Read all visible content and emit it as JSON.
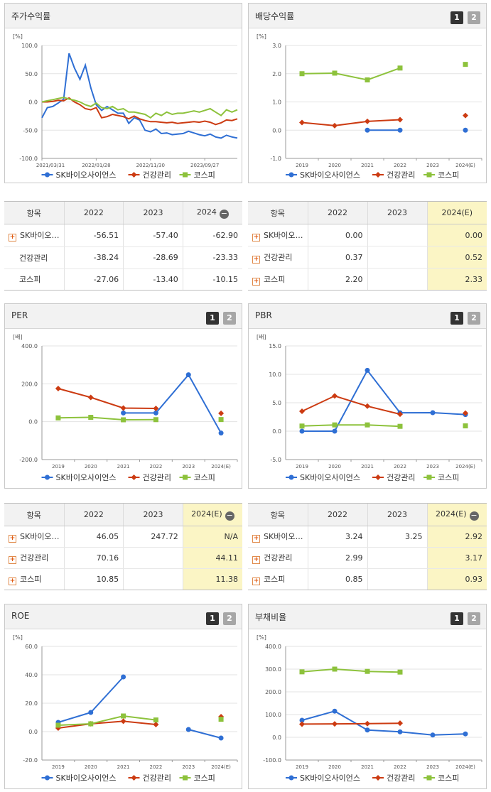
{
  "stock_return": {
    "title": "주가수익률",
    "table": {
      "head": [
        "항목",
        "2022",
        "2023",
        "2024"
      ],
      "rows": [
        {
          "name": "SK바이오…",
          "v": [
            "-56.51",
            "-57.40",
            "-62.90"
          ],
          "plus": true
        },
        {
          "name": "건강관리",
          "v": [
            "-38.24",
            "-28.69",
            "-23.33"
          ],
          "plus": false
        },
        {
          "name": "코스피",
          "v": [
            "-27.06",
            "-13.40",
            "-10.15"
          ],
          "plus": false
        }
      ]
    }
  },
  "dividend_yield": {
    "title": "배당수익률",
    "btn1": "1",
    "btn2": "2",
    "table": {
      "head": [
        "항목",
        "2022",
        "2023",
        "2024(E)"
      ],
      "rows": [
        {
          "name": "SK바이오…",
          "v": [
            "0.00",
            "",
            "0.00"
          ],
          "plus": true
        },
        {
          "name": "건강관리",
          "v": [
            "0.37",
            "",
            "0.52"
          ],
          "plus": true
        },
        {
          "name": "코스피",
          "v": [
            "2.20",
            "",
            "2.33"
          ],
          "plus": true
        }
      ]
    }
  },
  "per": {
    "title": "PER",
    "btn1": "1",
    "btn2": "2",
    "table": {
      "head": [
        "항목",
        "2022",
        "2023",
        "2024(E)"
      ],
      "rows": [
        {
          "name": "SK바이오…",
          "v": [
            "46.05",
            "247.72",
            "N/A"
          ],
          "plus": true
        },
        {
          "name": "건강관리",
          "v": [
            "70.16",
            "",
            "44.11"
          ],
          "plus": true
        },
        {
          "name": "코스피",
          "v": [
            "10.85",
            "",
            "11.38"
          ],
          "plus": true
        }
      ]
    }
  },
  "pbr": {
    "title": "PBR",
    "btn1": "1",
    "btn2": "2",
    "table": {
      "head": [
        "항목",
        "2022",
        "2023",
        "2024(E)"
      ],
      "rows": [
        {
          "name": "SK바이오…",
          "v": [
            "3.24",
            "3.25",
            "2.92"
          ],
          "plus": true
        },
        {
          "name": "건강관리",
          "v": [
            "2.99",
            "",
            "3.17"
          ],
          "plus": true
        },
        {
          "name": "코스피",
          "v": [
            "0.85",
            "",
            "0.93"
          ],
          "plus": true
        }
      ]
    }
  },
  "roe": {
    "title": "ROE",
    "btn1": "1",
    "btn2": "2"
  },
  "debt_ratio": {
    "title": "부채비율",
    "btn1": "1",
    "btn2": "2"
  },
  "colors": {
    "sk": "#2f6fd4",
    "health": "#cc3b12",
    "kospi": "#8dc23c"
  },
  "chart_data": [
    {
      "id": "stock_return",
      "type": "line",
      "unit": "[%]",
      "ylim": [
        -100,
        100
      ],
      "yticks": [
        "100.0",
        "50.0",
        "0.0",
        "-50.0",
        "-100.0"
      ],
      "x_tick_labels": [
        "2021/03/31",
        "2022/01/28",
        "2022/11/30",
        "2023/09/27"
      ],
      "x_ticks_at": [
        0,
        10,
        20,
        30
      ],
      "x_max": 36,
      "series": [
        {
          "name": "SK바이오사이언스",
          "color": "#2f6fd4",
          "marker": "circle",
          "values": [
            -28,
            -10,
            -8,
            -2,
            5,
            86,
            60,
            40,
            65,
            25,
            -5,
            -15,
            -8,
            -14,
            -20,
            -20,
            -38,
            -28,
            -32,
            -50,
            -53,
            -48,
            -56,
            -55,
            -58,
            -57,
            -56,
            -52,
            -55,
            -58,
            -60,
            -57,
            -62,
            -64,
            -59,
            -62,
            -64
          ]
        },
        {
          "name": "건강관리",
          "color": "#cc3b12",
          "marker": "diamond",
          "values": [
            0,
            0,
            1,
            3,
            2,
            7,
            0,
            -5,
            -12,
            -14,
            -10,
            -28,
            -26,
            -22,
            -24,
            -26,
            -30,
            -25,
            -30,
            -33,
            -35,
            -35,
            -36,
            -37,
            -36,
            -38,
            -37,
            -36,
            -35,
            -36,
            -34,
            -36,
            -40,
            -37,
            -32,
            -33,
            -30
          ]
        },
        {
          "name": "코스피",
          "color": "#8dc23c",
          "marker": "square",
          "values": [
            0,
            2,
            4,
            6,
            8,
            5,
            3,
            0,
            -5,
            -8,
            -2,
            -10,
            -12,
            -8,
            -14,
            -12,
            -18,
            -18,
            -20,
            -22,
            -28,
            -20,
            -24,
            -18,
            -22,
            -20,
            -20,
            -18,
            -16,
            -18,
            -15,
            -12,
            -18,
            -24,
            -14,
            -18,
            -14
          ]
        }
      ]
    },
    {
      "id": "dividend_yield",
      "type": "line",
      "unit": "[%]",
      "ylim": [
        -1,
        3
      ],
      "yticks": [
        "3.0",
        "2.0",
        "1.0",
        "0.0",
        "-1.0"
      ],
      "categories": [
        "2019",
        "2020",
        "2021",
        "2022",
        "2023",
        "2024(E)"
      ],
      "series": [
        {
          "name": "SK바이오사이언스",
          "color": "#2f6fd4",
          "marker": "circle",
          "values": [
            null,
            null,
            0.0,
            0.0,
            null,
            0.0
          ]
        },
        {
          "name": "건강관리",
          "color": "#cc3b12",
          "marker": "diamond",
          "values": [
            0.27,
            0.16,
            0.31,
            0.37,
            null,
            0.52
          ]
        },
        {
          "name": "코스피",
          "color": "#8dc23c",
          "marker": "square",
          "values": [
            2.0,
            2.02,
            1.78,
            2.2,
            null,
            2.33
          ]
        }
      ]
    },
    {
      "id": "per",
      "type": "line",
      "unit": "[배]",
      "ylim": [
        -200,
        400
      ],
      "yticks": [
        "400.0",
        "200.0",
        "0.0",
        "-200.0"
      ],
      "categories": [
        "2019",
        "2020",
        "2021",
        "2022",
        "2023",
        "2024(E)"
      ],
      "series": [
        {
          "name": "SK바이오사이언스",
          "color": "#2f6fd4",
          "marker": "circle",
          "values": [
            null,
            null,
            46.0,
            46.05,
            247.72,
            -60
          ]
        },
        {
          "name": "건강관리",
          "color": "#cc3b12",
          "marker": "diamond",
          "values": [
            175,
            128,
            72,
            70.16,
            null,
            44.11
          ]
        },
        {
          "name": "코스피",
          "color": "#8dc23c",
          "marker": "square",
          "values": [
            20,
            23,
            10,
            10.85,
            null,
            11.38
          ]
        }
      ]
    },
    {
      "id": "pbr",
      "type": "line",
      "unit": "[배]",
      "ylim": [
        -5,
        15
      ],
      "yticks": [
        "15.0",
        "10.0",
        "5.0",
        "0.0",
        "-5.0"
      ],
      "categories": [
        "2019",
        "2020",
        "2021",
        "2022",
        "2023",
        "2024(E)"
      ],
      "series": [
        {
          "name": "SK바이오사이언스",
          "color": "#2f6fd4",
          "marker": "circle",
          "values": [
            0.0,
            0.0,
            10.7,
            3.24,
            3.25,
            2.92
          ]
        },
        {
          "name": "건강관리",
          "color": "#cc3b12",
          "marker": "diamond",
          "values": [
            3.5,
            6.2,
            4.4,
            2.99,
            null,
            3.17
          ]
        },
        {
          "name": "코스피",
          "color": "#8dc23c",
          "marker": "square",
          "values": [
            0.9,
            1.1,
            1.1,
            0.85,
            null,
            0.93
          ]
        }
      ]
    },
    {
      "id": "roe",
      "type": "line",
      "unit": "[%]",
      "ylim": [
        -20,
        60
      ],
      "yticks": [
        "60.0",
        "40.0",
        "20.0",
        "0.0",
        "-20.0"
      ],
      "categories": [
        "2019",
        "2020",
        "2021",
        "2022",
        "2023",
        "2024(E)"
      ],
      "series": [
        {
          "name": "SK바이오사이언스",
          "color": "#2f6fd4",
          "marker": "circle",
          "values": [
            6.5,
            13.5,
            38.5,
            null,
            1.5,
            -4.5
          ]
        },
        {
          "name": "건강관리",
          "color": "#cc3b12",
          "marker": "diamond",
          "values": [
            2.5,
            5.5,
            7.3,
            5.0,
            null,
            10.5
          ]
        },
        {
          "name": "코스피",
          "color": "#8dc23c",
          "marker": "square",
          "values": [
            4.5,
            5.5,
            11.0,
            8.2,
            null,
            8.7
          ]
        }
      ]
    },
    {
      "id": "debt_ratio",
      "type": "line",
      "unit": "[%]",
      "ylim": [
        -100,
        400
      ],
      "yticks": [
        "400.0",
        "300.0",
        "200.0",
        "100.0",
        "0.0",
        "-100.0"
      ],
      "categories": [
        "2019",
        "2020",
        "2021",
        "2022",
        "2023",
        "2024(E)"
      ],
      "series": [
        {
          "name": "SK바이오사이언스",
          "color": "#2f6fd4",
          "marker": "circle",
          "values": [
            75,
            115,
            32,
            24,
            10,
            15
          ]
        },
        {
          "name": "건강관리",
          "color": "#cc3b12",
          "marker": "diamond",
          "values": [
            58,
            59,
            60,
            62,
            null,
            null
          ]
        },
        {
          "name": "코스피",
          "color": "#8dc23c",
          "marker": "square",
          "values": [
            288,
            300,
            290,
            287,
            null,
            null
          ]
        }
      ]
    }
  ]
}
